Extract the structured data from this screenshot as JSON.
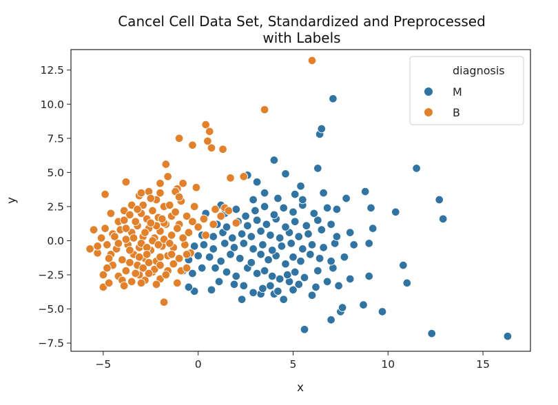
{
  "chart_data": {
    "type": "scatter",
    "title_line1": "Cancel Cell Data Set, Standardized and Preprocessed",
    "title_line2": "with Labels",
    "xlabel": "x",
    "ylabel": "y",
    "xlim": [
      -6.7,
      17.5
    ],
    "ylim": [
      -8.1,
      14.0
    ],
    "xticks": [
      -5,
      0,
      5,
      10,
      15
    ],
    "xtick_labels": [
      "−5",
      "0",
      "5",
      "10",
      "15"
    ],
    "yticks": [
      -7.5,
      -5.0,
      -2.5,
      0.0,
      2.5,
      5.0,
      7.5,
      10.0,
      12.5
    ],
    "ytick_labels": [
      "−7.5",
      "−5.0",
      "−2.5",
      "0.0",
      "2.5",
      "5.0",
      "7.5",
      "10.0",
      "12.5"
    ],
    "grid": false,
    "legend": {
      "title": "diagnosis",
      "placement": "top-right"
    },
    "series": [
      {
        "name": "M",
        "color": "#3274a1",
        "points": [
          [
            16.3,
            -7.0
          ],
          [
            12.3,
            -6.8
          ],
          [
            5.6,
            -6.5
          ],
          [
            7.0,
            -5.8
          ],
          [
            9.7,
            -5.2
          ],
          [
            7.5,
            -5.2
          ],
          [
            7.6,
            -4.9
          ],
          [
            8.7,
            -4.7
          ],
          [
            2.3,
            -4.3
          ],
          [
            4.5,
            -4.3
          ],
          [
            6.0,
            -4.0
          ],
          [
            3.3,
            -3.9
          ],
          [
            2.9,
            -3.8
          ],
          [
            4.0,
            -3.9
          ],
          [
            4.2,
            -3.7
          ],
          [
            5.0,
            -3.6
          ],
          [
            0.7,
            -3.6
          ],
          [
            -0.2,
            -3.7
          ],
          [
            -0.5,
            -3.4
          ],
          [
            1.1,
            -3.0
          ],
          [
            1.9,
            -3.2
          ],
          [
            2.4,
            -3.3
          ],
          [
            3.4,
            -3.5
          ],
          [
            3.8,
            -3.3
          ],
          [
            4.8,
            -3.0
          ],
          [
            5.3,
            -3.2
          ],
          [
            6.2,
            -3.4
          ],
          [
            6.8,
            -3.0
          ],
          [
            7.4,
            -3.3
          ],
          [
            8.0,
            -2.8
          ],
          [
            9.0,
            -2.6
          ],
          [
            11.0,
            -3.1
          ],
          [
            10.8,
            -1.8
          ],
          [
            -0.8,
            -2.2
          ],
          [
            -0.3,
            -2.4
          ],
          [
            0.2,
            -2.0
          ],
          [
            0.9,
            -2.0
          ],
          [
            1.5,
            -2.3
          ],
          [
            2.0,
            -2.6
          ],
          [
            2.6,
            -2.0
          ],
          [
            3.1,
            -2.4
          ],
          [
            3.5,
            -2.2
          ],
          [
            3.9,
            -2.6
          ],
          [
            4.3,
            -2.8
          ],
          [
            4.7,
            -2.5
          ],
          [
            5.1,
            -2.3
          ],
          [
            5.6,
            -2.7
          ],
          [
            6.3,
            -2.2
          ],
          [
            7.1,
            -2.0
          ],
          [
            -0.5,
            -1.4
          ],
          [
            0.0,
            -1.1
          ],
          [
            0.6,
            -1.2
          ],
          [
            1.2,
            -1.5
          ],
          [
            1.7,
            -1.0
          ],
          [
            2.2,
            -1.3
          ],
          [
            2.8,
            -1.6
          ],
          [
            3.3,
            -1.0
          ],
          [
            3.7,
            -1.4
          ],
          [
            4.1,
            -1.1
          ],
          [
            4.6,
            -1.7
          ],
          [
            5.0,
            -1.2
          ],
          [
            5.4,
            -1.5
          ],
          [
            5.9,
            -1.0
          ],
          [
            6.4,
            -1.3
          ],
          [
            7.0,
            -1.5
          ],
          [
            7.7,
            -1.2
          ],
          [
            -0.2,
            -0.4
          ],
          [
            0.3,
            -0.3
          ],
          [
            0.8,
            -0.6
          ],
          [
            1.4,
            -0.2
          ],
          [
            1.9,
            -0.5
          ],
          [
            2.4,
            -0.2
          ],
          [
            2.9,
            -0.6
          ],
          [
            3.4,
            -0.3
          ],
          [
            3.9,
            -0.7
          ],
          [
            4.4,
            -0.4
          ],
          [
            4.9,
            -0.2
          ],
          [
            5.5,
            -0.6
          ],
          [
            6.0,
            -0.3
          ],
          [
            6.6,
            -0.5
          ],
          [
            7.2,
            -0.2
          ],
          [
            8.2,
            -0.3
          ],
          [
            9.0,
            -0.2
          ],
          [
            0.2,
            0.4
          ],
          [
            0.8,
            0.3
          ],
          [
            1.3,
            0.6
          ],
          [
            1.8,
            0.2
          ],
          [
            2.3,
            0.5
          ],
          [
            2.8,
            0.3
          ],
          [
            3.3,
            0.7
          ],
          [
            3.8,
            0.4
          ],
          [
            4.3,
            0.2
          ],
          [
            4.8,
            0.6
          ],
          [
            5.3,
            0.3
          ],
          [
            5.8,
            0.5
          ],
          [
            6.5,
            0.8
          ],
          [
            7.3,
            0.3
          ],
          [
            8.0,
            0.6
          ],
          [
            9.2,
            0.9
          ],
          [
            1.0,
            1.2
          ],
          [
            1.5,
            1.0
          ],
          [
            2.1,
            1.4
          ],
          [
            2.6,
            1.1
          ],
          [
            3.1,
            1.5
          ],
          [
            3.6,
            1.2
          ],
          [
            4.1,
            1.6
          ],
          [
            4.6,
            1.0
          ],
          [
            5.1,
            1.4
          ],
          [
            5.7,
            1.1
          ],
          [
            6.3,
            1.5
          ],
          [
            7.0,
            1.2
          ],
          [
            1.4,
            2.0
          ],
          [
            2.0,
            2.3
          ],
          [
            2.5,
            1.8
          ],
          [
            3.0,
            2.2
          ],
          [
            3.5,
            2.5
          ],
          [
            4.0,
            1.9
          ],
          [
            4.5,
            2.4
          ],
          [
            5.0,
            2.1
          ],
          [
            5.5,
            2.6
          ],
          [
            6.1,
            2.0
          ],
          [
            6.8,
            2.4
          ],
          [
            7.3,
            2.3
          ],
          [
            7.8,
            3.1
          ],
          [
            8.8,
            3.6
          ],
          [
            9.1,
            2.4
          ],
          [
            10.4,
            2.1
          ],
          [
            12.7,
            3.0
          ],
          [
            12.9,
            1.6
          ],
          [
            2.9,
            3.0
          ],
          [
            3.5,
            3.5
          ],
          [
            4.2,
            3.1
          ],
          [
            5.1,
            3.4
          ],
          [
            5.5,
            3.0
          ],
          [
            6.6,
            3.5
          ],
          [
            2.6,
            4.8
          ],
          [
            3.1,
            4.3
          ],
          [
            4.6,
            4.9
          ],
          [
            6.3,
            5.3
          ],
          [
            5.4,
            4.0
          ],
          [
            4.0,
            5.9
          ],
          [
            11.5,
            5.3
          ],
          [
            6.4,
            7.8
          ],
          [
            6.5,
            8.2
          ],
          [
            7.1,
            10.4
          ],
          [
            0.4,
            2.0
          ],
          [
            1.2,
            2.6
          ]
        ]
      },
      {
        "name": "B",
        "color": "#e1812c",
        "points": [
          [
            6.0,
            13.2
          ],
          [
            3.5,
            9.6
          ],
          [
            0.4,
            8.5
          ],
          [
            0.6,
            8.0
          ],
          [
            -1.0,
            7.5
          ],
          [
            -0.3,
            7.0
          ],
          [
            0.7,
            6.8
          ],
          [
            1.3,
            6.7
          ],
          [
            0.5,
            7.3
          ],
          [
            -1.7,
            5.6
          ],
          [
            -1.6,
            4.7
          ],
          [
            -0.8,
            4.2
          ],
          [
            1.7,
            4.6
          ],
          [
            2.4,
            4.7
          ],
          [
            -3.8,
            4.3
          ],
          [
            -4.9,
            3.4
          ],
          [
            -1.1,
            3.8
          ],
          [
            -0.1,
            3.9
          ],
          [
            -5.5,
            0.8
          ],
          [
            -5.7,
            -0.6
          ],
          [
            -5.0,
            -2.5
          ],
          [
            -5.0,
            -3.4
          ],
          [
            -4.7,
            -3.1
          ],
          [
            -1.8,
            -4.5
          ],
          [
            -0.9,
            -2.2
          ],
          [
            -1.1,
            -3.1
          ],
          [
            -0.6,
            -2.0
          ],
          [
            -4.8,
            -0.3
          ],
          [
            -4.5,
            0.5
          ],
          [
            -4.2,
            1.4
          ],
          [
            -3.9,
            2.2
          ],
          [
            -3.5,
            2.6
          ],
          [
            -3.1,
            3.3
          ],
          [
            -2.6,
            3.6
          ],
          [
            -2.2,
            3.0
          ],
          [
            -1.8,
            2.5
          ],
          [
            -1.4,
            1.8
          ],
          [
            -1.0,
            1.2
          ],
          [
            -0.6,
            1.8
          ],
          [
            -0.2,
            2.5
          ],
          [
            0.3,
            1.6
          ],
          [
            0.8,
            1.2
          ],
          [
            1.2,
            1.8
          ],
          [
            -4.5,
            -1.8
          ],
          [
            -4.2,
            -2.6
          ],
          [
            -3.8,
            -2.2
          ],
          [
            -3.5,
            -3.0
          ],
          [
            -3.1,
            -2.5
          ],
          [
            -2.8,
            -2.9
          ],
          [
            -2.4,
            -2.3
          ],
          [
            -2.0,
            -2.8
          ],
          [
            -1.6,
            -2.2
          ],
          [
            -1.3,
            -1.7
          ],
          [
            -4.6,
            -1.0
          ],
          [
            -4.3,
            -0.6
          ],
          [
            -4.0,
            -1.4
          ],
          [
            -3.7,
            -0.3
          ],
          [
            -3.4,
            -1.0
          ],
          [
            -3.1,
            -0.5
          ],
          [
            -2.8,
            -1.3
          ],
          [
            -2.5,
            -0.7
          ],
          [
            -2.2,
            -1.5
          ],
          [
            -1.9,
            -0.4
          ],
          [
            -1.6,
            -1.1
          ],
          [
            -1.3,
            -0.5
          ],
          [
            -1.0,
            -1.3
          ],
          [
            -0.7,
            -0.3
          ],
          [
            -0.4,
            -0.9
          ],
          [
            -4.4,
            0.3
          ],
          [
            -4.1,
            0.8
          ],
          [
            -3.8,
            0.1
          ],
          [
            -3.5,
            0.6
          ],
          [
            -3.2,
            1.1
          ],
          [
            -2.9,
            0.3
          ],
          [
            -2.6,
            0.9
          ],
          [
            -2.3,
            0.2
          ],
          [
            -2.0,
            0.7
          ],
          [
            -1.7,
            1.2
          ],
          [
            -1.4,
            0.4
          ],
          [
            -1.1,
            0.9
          ],
          [
            -0.8,
            0.2
          ],
          [
            -0.5,
            0.6
          ],
          [
            -3.9,
            1.5
          ],
          [
            -3.6,
            1.9
          ],
          [
            -3.3,
            1.4
          ],
          [
            -3.0,
            2.0
          ],
          [
            -2.7,
            1.6
          ],
          [
            -2.4,
            2.2
          ],
          [
            -2.1,
            1.7
          ],
          [
            -1.8,
            1.3
          ],
          [
            -1.5,
            2.6
          ],
          [
            -1.2,
            2.1
          ],
          [
            -0.9,
            2.9
          ],
          [
            -2.9,
            2.6
          ],
          [
            -2.5,
            3.1
          ],
          [
            -2.0,
            3.5
          ],
          [
            -1.2,
            3.6
          ],
          [
            -3.2,
            -1.8
          ],
          [
            -2.9,
            -2.0
          ],
          [
            -2.6,
            -1.6
          ],
          [
            -2.3,
            -2.1
          ],
          [
            -2.0,
            -1.8
          ],
          [
            -1.7,
            -2.5
          ],
          [
            -3.6,
            -1.6
          ],
          [
            -3.3,
            -2.4
          ],
          [
            -4.0,
            -2.9
          ],
          [
            -3.9,
            -3.3
          ],
          [
            -2.2,
            -3.2
          ],
          [
            -2.6,
            -2.4
          ],
          [
            -3.0,
            -3.1
          ],
          [
            -5.3,
            -0.9
          ],
          [
            -5.1,
            0.2
          ],
          [
            -4.9,
            0.9
          ],
          [
            -4.7,
            -1.3
          ],
          [
            -4.8,
            -2.0
          ],
          [
            -3.0,
            -0.2
          ],
          [
            -2.7,
            -0.5
          ],
          [
            -2.4,
            0.0
          ],
          [
            -2.1,
            -0.3
          ],
          [
            -1.8,
            0.1
          ],
          [
            -1.5,
            -0.2
          ],
          [
            -3.4,
            0.2
          ],
          [
            -3.6,
            -0.7
          ],
          [
            -4.2,
            -0.2
          ],
          [
            -2.8,
            0.6
          ],
          [
            -2.2,
            1.1
          ],
          [
            -1.9,
            1.6
          ],
          [
            -3.2,
            2.3
          ],
          [
            -3.8,
            0.9
          ],
          [
            -2.5,
            1.3
          ],
          [
            -3.1,
            -1.2
          ],
          [
            -2.7,
            -1.0
          ],
          [
            -2.0,
            -1.2
          ],
          [
            -1.4,
            -1.0
          ],
          [
            -0.6,
            -1.0
          ],
          [
            0.4,
            0.4
          ],
          [
            0.0,
            1.0
          ],
          [
            0.9,
            2.3
          ],
          [
            1.4,
            2.4
          ],
          [
            2.0,
            1.3
          ],
          [
            1.6,
            2.2
          ],
          [
            -0.3,
            1.4
          ],
          [
            -5.3,
            -0.4
          ],
          [
            -4.6,
            2.0
          ],
          [
            -3.0,
            3.5
          ],
          [
            -2.0,
            4.2
          ],
          [
            -1.0,
            3.2
          ]
        ]
      }
    ]
  }
}
